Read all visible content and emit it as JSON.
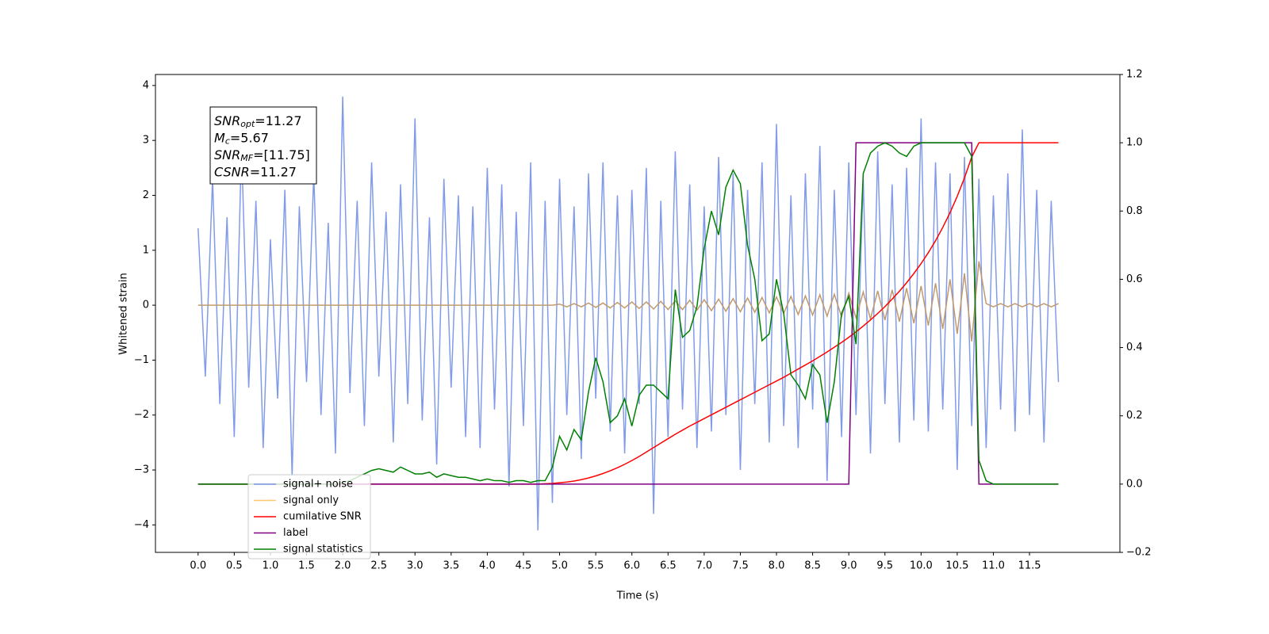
{
  "chart_data": {
    "type": "line",
    "xlabel": "Time (s)",
    "ylabel": "Whitened strain",
    "xlim": [
      -0.59,
      12.75
    ],
    "ylim": [
      -4.5,
      4.2
    ],
    "y2lim": [
      -0.2,
      1.2
    ],
    "xticks": [
      {
        "value": 0,
        "label": "0.0"
      },
      {
        "value": 0.5,
        "label": "0.5"
      },
      {
        "value": 1,
        "label": "1.0"
      },
      {
        "value": 1.5,
        "label": "1.5"
      },
      {
        "value": 2,
        "label": "2.0"
      },
      {
        "value": 2.5,
        "label": "2.5"
      },
      {
        "value": 3,
        "label": "3.0"
      },
      {
        "value": 3.5,
        "label": "3.5"
      },
      {
        "value": 4,
        "label": "4.0"
      },
      {
        "value": 4.5,
        "label": "4.5"
      },
      {
        "value": 5,
        "label": "5.0"
      },
      {
        "value": 5.5,
        "label": "5.5"
      },
      {
        "value": 6,
        "label": "6.0"
      },
      {
        "value": 6.5,
        "label": "6.5"
      },
      {
        "value": 7,
        "label": "7.0"
      },
      {
        "value": 7.5,
        "label": "7.5"
      },
      {
        "value": 8,
        "label": "8.0"
      },
      {
        "value": 8.5,
        "label": "8.5"
      },
      {
        "value": 9,
        "label": "9.0"
      },
      {
        "value": 9.5,
        "label": "9.5"
      },
      {
        "value": 10,
        "label": "10.0"
      },
      {
        "value": 10.5,
        "label": "10.5"
      },
      {
        "value": 11,
        "label": "11.0"
      },
      {
        "value": 11.5,
        "label": "11.5"
      }
    ],
    "yticks": [
      {
        "value": -4,
        "label": "−4"
      },
      {
        "value": -3,
        "label": "−3"
      },
      {
        "value": -2,
        "label": "−2"
      },
      {
        "value": -1,
        "label": "−1"
      },
      0,
      1,
      2,
      3,
      4
    ],
    "y2ticks": [
      {
        "value": -0.2,
        "label": "−0.2"
      },
      {
        "value": 0,
        "label": "0.0"
      },
      {
        "value": 0.2,
        "label": "0.2"
      },
      {
        "value": 0.4,
        "label": "0.4"
      },
      {
        "value": 0.6,
        "label": "0.6"
      },
      {
        "value": 0.8,
        "label": "0.8"
      },
      {
        "value": 1,
        "label": "1.0"
      },
      {
        "value": 1.2,
        "label": "1.2"
      }
    ],
    "annotations": [
      {
        "main": "SNR",
        "sub": "opt",
        "rest": "=11.27"
      },
      {
        "main": "M",
        "sub": "c",
        "rest": "=5.67"
      },
      {
        "main": "SNR",
        "sub": "MF",
        "rest": "=[11.75]"
      },
      {
        "main": "CSNR",
        "rest": "=11.27"
      }
    ],
    "x": [
      0,
      0.1,
      0.2,
      0.3,
      0.4,
      0.5,
      0.6,
      0.7,
      0.8,
      0.9,
      1,
      1.1,
      1.2,
      1.3,
      1.4,
      1.5,
      1.6,
      1.7,
      1.8,
      1.9,
      2,
      2.1,
      2.2,
      2.3,
      2.4,
      2.5,
      2.6,
      2.7,
      2.8,
      2.9,
      3,
      3.1,
      3.2,
      3.3,
      3.4,
      3.5,
      3.6,
      3.7,
      3.8,
      3.9,
      4,
      4.1,
      4.2,
      4.3,
      4.4,
      4.5,
      4.6,
      4.7,
      4.8,
      4.9,
      5,
      5.1,
      5.2,
      5.3,
      5.4,
      5.5,
      5.6,
      5.7,
      5.8,
      5.9,
      6,
      6.1,
      6.2,
      6.3,
      6.4,
      6.5,
      6.6,
      6.7,
      6.8,
      6.9,
      7,
      7.1,
      7.2,
      7.3,
      7.4,
      7.5,
      7.6,
      7.7,
      7.8,
      7.9,
      8,
      8.1,
      8.2,
      8.3,
      8.4,
      8.5,
      8.6,
      8.7,
      8.8,
      8.9,
      9,
      9.1,
      9.2,
      9.3,
      9.4,
      9.5,
      9.6,
      9.7,
      9.8,
      9.9,
      10,
      10.1,
      10.2,
      10.3,
      10.4,
      10.5,
      10.6,
      10.7,
      10.8,
      10.9,
      11,
      11.1,
      11.2,
      11.3,
      11.4,
      11.5,
      11.6,
      11.7,
      11.8,
      11.9
    ],
    "series": [
      {
        "name": "signal+ noise",
        "color": "#7b96e8",
        "values": [
          1.4,
          -1.3,
          2.3,
          -1.8,
          1.6,
          -2.4,
          2.9,
          -1.5,
          1.9,
          -2.6,
          1.2,
          -1.7,
          2.1,
          -3.1,
          1.8,
          -1.4,
          2.4,
          -2.0,
          1.5,
          -2.7,
          3.8,
          -1.6,
          1.9,
          -2.2,
          2.6,
          -1.3,
          1.7,
          -2.5,
          2.2,
          -1.8,
          3.4,
          -2.1,
          1.6,
          -2.9,
          2.3,
          -1.5,
          2.0,
          -2.4,
          1.8,
          -2.6,
          2.5,
          -1.9,
          2.2,
          -3.3,
          1.7,
          -2.2,
          2.6,
          -4.1,
          1.9,
          -3.6,
          2.3,
          -2.0,
          1.8,
          -2.8,
          2.4,
          -1.7,
          2.6,
          -2.3,
          2.0,
          -2.7,
          2.1,
          -1.8,
          2.5,
          -3.8,
          1.9,
          -2.4,
          2.8,
          -1.9,
          2.2,
          -2.6,
          1.8,
          -2.3,
          2.7,
          -2.0,
          2.4,
          -3.0,
          2.1,
          -1.8,
          2.6,
          -2.5,
          3.3,
          -2.2,
          2.0,
          -2.6,
          2.4,
          -1.9,
          2.9,
          -3.2,
          2.1,
          -2.4,
          2.6,
          -2.0,
          2.3,
          -2.7,
          2.8,
          -1.8,
          2.2,
          -2.5,
          2.5,
          -2.1,
          3.4,
          -2.3,
          2.6,
          -1.9,
          2.4,
          -3.0,
          2.7,
          -2.2,
          2.3,
          -2.6,
          2.0,
          -1.9,
          2.4,
          -2.3,
          3.2,
          -2.0,
          2.1,
          -2.5,
          1.9,
          -1.4
        ]
      },
      {
        "name": "signal only",
        "color": "#ffc870",
        "values": [
          0,
          0,
          0,
          0,
          0,
          0,
          0,
          0,
          0,
          0,
          0,
          0,
          0,
          0,
          0,
          0,
          0,
          0,
          0,
          0,
          0,
          0,
          0,
          0,
          0,
          0,
          0,
          0,
          0,
          0,
          0,
          0,
          0,
          0,
          0,
          0,
          0,
          0,
          0,
          0,
          0,
          0,
          0,
          0,
          0,
          0,
          0,
          0,
          0,
          0,
          0.02,
          -0.03,
          0.03,
          -0.03,
          0.04,
          -0.04,
          0.04,
          -0.05,
          0.05,
          -0.05,
          0.06,
          -0.06,
          0.06,
          -0.07,
          0.07,
          -0.08,
          0.08,
          -0.08,
          0.09,
          -0.09,
          0.1,
          -0.1,
          0.11,
          -0.11,
          0.12,
          -0.12,
          0.13,
          -0.13,
          0.14,
          -0.14,
          0.15,
          -0.15,
          0.16,
          -0.17,
          0.17,
          -0.18,
          0.19,
          -0.2,
          0.2,
          -0.21,
          0.22,
          -0.23,
          0.24,
          -0.25,
          0.26,
          -0.27,
          0.28,
          -0.3,
          0.31,
          -0.33,
          0.35,
          -0.37,
          0.4,
          -0.43,
          0.47,
          -0.52,
          0.58,
          -0.66,
          0.8,
          0.03,
          -0.03,
          0.03,
          -0.03,
          0.03,
          -0.03,
          0.03,
          -0.03,
          0.03,
          -0.03,
          0.03
        ]
      },
      {
        "name": "cumilative SNR",
        "color": "#ff0000",
        "axis": "y2",
        "values": [
          0,
          0,
          0,
          0,
          0,
          0,
          0,
          0,
          0,
          0,
          0,
          0,
          0,
          0,
          0,
          0,
          0,
          0,
          0,
          0,
          0,
          0,
          0,
          0,
          0,
          0,
          0,
          0,
          0,
          0,
          0,
          0,
          0,
          0,
          0,
          0,
          0,
          0,
          0,
          0,
          0,
          0,
          0,
          0,
          0,
          0,
          0,
          0,
          0.001,
          0.002,
          0.004,
          0.006,
          0.009,
          0.013,
          0.018,
          0.024,
          0.031,
          0.039,
          0.048,
          0.058,
          0.069,
          0.081,
          0.094,
          0.107,
          0.12,
          0.133,
          0.146,
          0.158,
          0.17,
          0.181,
          0.192,
          0.203,
          0.214,
          0.225,
          0.236,
          0.247,
          0.258,
          0.269,
          0.28,
          0.291,
          0.302,
          0.313,
          0.325,
          0.337,
          0.349,
          0.361,
          0.374,
          0.387,
          0.401,
          0.415,
          0.43,
          0.446,
          0.463,
          0.481,
          0.5,
          0.52,
          0.542,
          0.565,
          0.59,
          0.617,
          0.646,
          0.678,
          0.713,
          0.752,
          0.795,
          0.843,
          0.897,
          0.958,
          1,
          1,
          1,
          1,
          1,
          1,
          1,
          1,
          1,
          1,
          1,
          1
        ]
      },
      {
        "name": "label",
        "color": "#800080",
        "axis": "y2",
        "values": [
          0,
          0,
          0,
          0,
          0,
          0,
          0,
          0,
          0,
          0,
          0,
          0,
          0,
          0,
          0,
          0,
          0,
          0,
          0,
          0,
          0,
          0,
          0,
          0,
          0,
          0,
          0,
          0,
          0,
          0,
          0,
          0,
          0,
          0,
          0,
          0,
          0,
          0,
          0,
          0,
          0,
          0,
          0,
          0,
          0,
          0,
          0,
          0,
          0,
          0,
          0,
          0,
          0,
          0,
          0,
          0,
          0,
          0,
          0,
          0,
          0,
          0,
          0,
          0,
          0,
          0,
          0,
          0,
          0,
          0,
          0,
          0,
          0,
          0,
          0,
          0,
          0,
          0,
          0,
          0,
          0,
          0,
          0,
          0,
          0,
          0,
          0,
          0,
          0,
          0,
          0,
          1,
          1,
          1,
          1,
          1,
          1,
          1,
          1,
          1,
          1,
          1,
          1,
          1,
          1,
          1,
          1,
          1,
          0,
          0,
          0,
          0,
          0,
          0,
          0,
          0,
          0,
          0,
          0,
          0
        ]
      },
      {
        "name": "signal statistics",
        "color": "#008000",
        "axis": "y2",
        "values": [
          0,
          0,
          0,
          0,
          0,
          0,
          0,
          0,
          0,
          0,
          0,
          0,
          0,
          0,
          0,
          0,
          0,
          0,
          0,
          0,
          0.005,
          0.01,
          0.02,
          0.03,
          0.04,
          0.045,
          0.04,
          0.035,
          0.05,
          0.04,
          0.03,
          0.03,
          0.035,
          0.02,
          0.03,
          0.025,
          0.02,
          0.02,
          0.015,
          0.01,
          0.015,
          0.01,
          0.01,
          0.005,
          0.01,
          0.01,
          0.005,
          0.01,
          0.01,
          0.05,
          0.14,
          0.1,
          0.16,
          0.13,
          0.27,
          0.37,
          0.3,
          0.18,
          0.2,
          0.25,
          0.17,
          0.26,
          0.29,
          0.29,
          0.27,
          0.25,
          0.57,
          0.43,
          0.45,
          0.52,
          0.69,
          0.8,
          0.73,
          0.87,
          0.92,
          0.88,
          0.7,
          0.6,
          0.42,
          0.44,
          0.6,
          0.5,
          0.32,
          0.29,
          0.25,
          0.35,
          0.32,
          0.18,
          0.3,
          0.5,
          0.55,
          0.41,
          0.91,
          0.97,
          0.99,
          1,
          0.99,
          0.97,
          0.96,
          0.99,
          1,
          1,
          1,
          1,
          1,
          1,
          1,
          0.96,
          0.07,
          0.01,
          0,
          0,
          0,
          0,
          0,
          0,
          0,
          0,
          0,
          0
        ]
      }
    ]
  }
}
